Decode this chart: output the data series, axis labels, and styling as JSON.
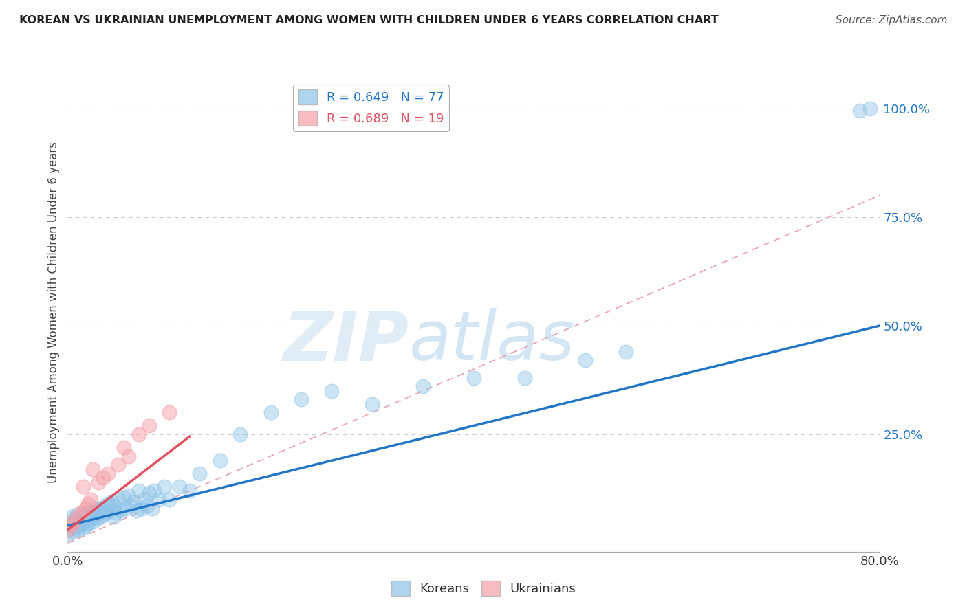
{
  "title": "KOREAN VS UKRAINIAN UNEMPLOYMENT AMONG WOMEN WITH CHILDREN UNDER 6 YEARS CORRELATION CHART",
  "source": "Source: ZipAtlas.com",
  "ylabel": "Unemployment Among Women with Children Under 6 years",
  "xlim": [
    0.0,
    0.8
  ],
  "ylim": [
    -0.02,
    1.08
  ],
  "legend_korean": "R = 0.649   N = 77",
  "legend_ukrainian": "R = 0.689   N = 19",
  "korean_color": "#8ec4e8",
  "ukrainian_color": "#f4a0a8",
  "korean_line_color": "#2176c8",
  "ukrainian_line_color": "#e05060",
  "watermark_zip": "ZIP",
  "watermark_atlas": "atlas",
  "background_color": "#ffffff",
  "korean_x": [
    0.0,
    0.0,
    0.0,
    0.002,
    0.004,
    0.005,
    0.006,
    0.007,
    0.008,
    0.009,
    0.01,
    0.01,
    0.011,
    0.012,
    0.013,
    0.014,
    0.015,
    0.015,
    0.016,
    0.017,
    0.018,
    0.019,
    0.02,
    0.021,
    0.022,
    0.023,
    0.025,
    0.026,
    0.027,
    0.028,
    0.029,
    0.03,
    0.032,
    0.033,
    0.035,
    0.037,
    0.038,
    0.04,
    0.042,
    0.043,
    0.045,
    0.046,
    0.048,
    0.05,
    0.052,
    0.055,
    0.057,
    0.06,
    0.062,
    0.065,
    0.068,
    0.07,
    0.073,
    0.075,
    0.078,
    0.08,
    0.083,
    0.085,
    0.09,
    0.095,
    0.1,
    0.11,
    0.12,
    0.13,
    0.15,
    0.17,
    0.2,
    0.23,
    0.26,
    0.3,
    0.35,
    0.4,
    0.45,
    0.51,
    0.55,
    0.78,
    0.79
  ],
  "korean_y": [
    0.02,
    0.03,
    0.05,
    0.04,
    0.06,
    0.025,
    0.045,
    0.035,
    0.055,
    0.065,
    0.03,
    0.05,
    0.04,
    0.06,
    0.045,
    0.055,
    0.035,
    0.07,
    0.05,
    0.065,
    0.04,
    0.06,
    0.045,
    0.07,
    0.055,
    0.065,
    0.05,
    0.07,
    0.06,
    0.08,
    0.055,
    0.075,
    0.06,
    0.08,
    0.065,
    0.085,
    0.07,
    0.09,
    0.075,
    0.095,
    0.06,
    0.085,
    0.07,
    0.1,
    0.075,
    0.105,
    0.08,
    0.11,
    0.085,
    0.095,
    0.075,
    0.12,
    0.08,
    0.1,
    0.085,
    0.115,
    0.08,
    0.12,
    0.1,
    0.13,
    0.1,
    0.13,
    0.12,
    0.16,
    0.19,
    0.25,
    0.3,
    0.33,
    0.35,
    0.32,
    0.36,
    0.38,
    0.38,
    0.42,
    0.44,
    0.995,
    1.0
  ],
  "ukrainian_x": [
    0.0,
    0.003,
    0.006,
    0.01,
    0.013,
    0.015,
    0.018,
    0.02,
    0.023,
    0.025,
    0.03,
    0.035,
    0.04,
    0.05,
    0.055,
    0.06,
    0.07,
    0.08,
    0.1
  ],
  "ukrainian_y": [
    0.03,
    0.04,
    0.05,
    0.06,
    0.07,
    0.13,
    0.08,
    0.09,
    0.1,
    0.17,
    0.14,
    0.15,
    0.16,
    0.18,
    0.22,
    0.2,
    0.25,
    0.27,
    0.3
  ],
  "korean_line_x": [
    0.0,
    0.8
  ],
  "korean_line_y": [
    0.04,
    0.5
  ],
  "ukrainian_line_x": [
    0.0,
    0.12
  ],
  "ukrainian_line_y": [
    0.03,
    0.245
  ],
  "ref_line_x": [
    0.0,
    0.8
  ],
  "ref_line_y": [
    0.0,
    0.8
  ]
}
